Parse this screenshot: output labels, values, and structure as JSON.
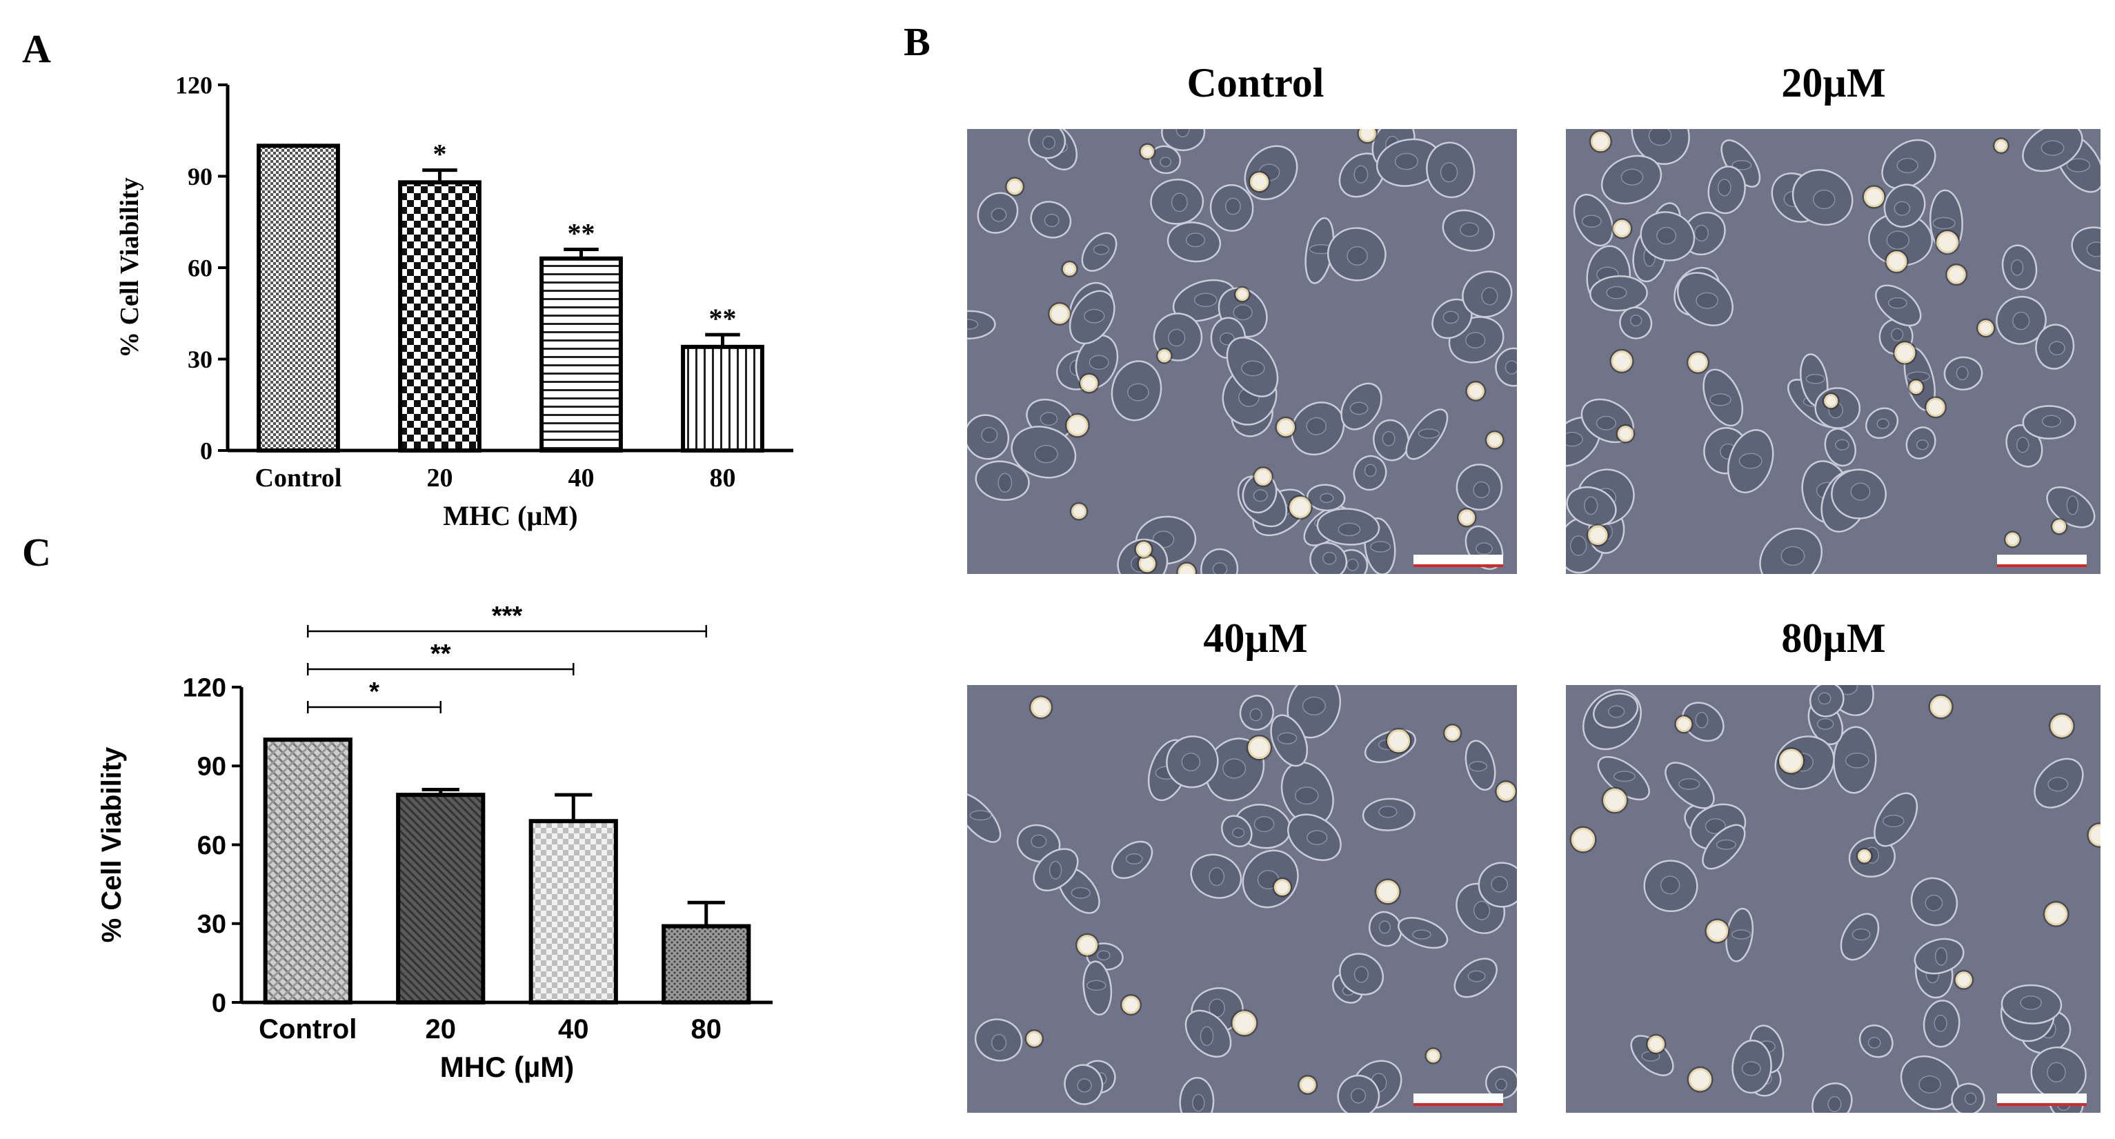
{
  "panels": {
    "A": "A",
    "B": "B",
    "C": "C"
  },
  "colors": {
    "bar_outline": "#000000",
    "micro_bg": "#6f7488",
    "cell_fill": "#5e6478",
    "cell_edge": "#c9ccd8",
    "bright_cell": "#f3efe4",
    "scalebar": "#d62828"
  },
  "chart_data": [
    {
      "panel": "A",
      "type": "bar",
      "categories": [
        "Control",
        "20",
        "40",
        "80"
      ],
      "values": [
        100,
        88,
        63,
        34
      ],
      "errors": [
        0,
        4,
        3,
        4
      ],
      "significance": [
        "",
        "*",
        "**",
        "**"
      ],
      "patterns": [
        "fine-checker",
        "coarse-checker",
        "horizontal-lines",
        "vertical-lines"
      ],
      "xlabel": "MHC (µM)",
      "ylabel": "% Cell Viability",
      "ylim": [
        0,
        120
      ],
      "yticks": [
        "0",
        "30",
        "60",
        "90",
        "120"
      ],
      "grid": false,
      "legend": "none"
    },
    {
      "panel": "C",
      "type": "bar",
      "categories": [
        "Control",
        "20",
        "40",
        "80"
      ],
      "values": [
        100,
        79,
        69,
        29
      ],
      "errors": [
        0,
        2,
        10,
        9
      ],
      "comparisons": [
        {
          "from": "Control",
          "to": "20",
          "label": "*"
        },
        {
          "from": "Control",
          "to": "40",
          "label": "**"
        },
        {
          "from": "Control",
          "to": "80",
          "label": "***"
        }
      ],
      "patterns": [
        "diagonal-weave",
        "dark-hatch",
        "light-checker",
        "dots"
      ],
      "xlabel": "MHC (µM)",
      "ylabel": "% Cell Viability",
      "ylim": [
        0,
        120
      ],
      "yticks": [
        "0",
        "30",
        "60",
        "90",
        "120"
      ],
      "grid": false,
      "legend": "none"
    }
  ],
  "micrographs": [
    {
      "title": "Control",
      "density": 58,
      "seed": 11
    },
    {
      "title": "20µM",
      "density": 52,
      "seed": 23
    },
    {
      "title": "40µM",
      "density": 38,
      "seed": 37
    },
    {
      "title": "80µM",
      "density": 36,
      "seed": 53
    }
  ]
}
